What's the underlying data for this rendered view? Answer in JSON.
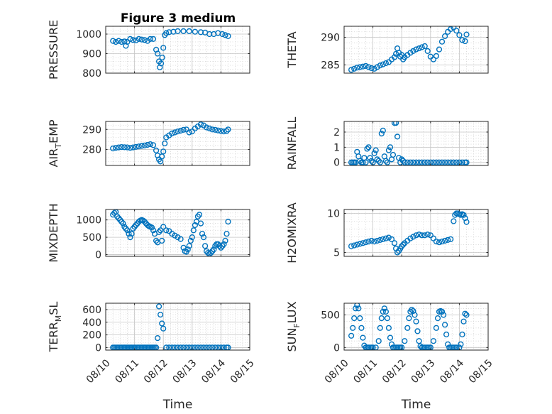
{
  "figure": {
    "title": "Figure 3 medium",
    "marker_color": "#0072BD"
  },
  "chart_data": [
    {
      "type": "scatter",
      "title": "Figure 3 medium",
      "ylabel": "PRESSURE",
      "xlabel": "",
      "xlim": [
        0,
        5
      ],
      "ylim": [
        800,
        1040
      ],
      "yticks": [
        800,
        900,
        1000
      ],
      "xticks": [
        0,
        1,
        2,
        3,
        4,
        5
      ],
      "xtick_labels": [
        "08/10",
        "08/11",
        "08/12",
        "08/13",
        "08/14",
        "08/15"
      ],
      "x_unit": "days since 08/10 00:00",
      "grid": true,
      "points": {
        "x": [
          0.25,
          0.35,
          0.45,
          0.55,
          0.65,
          0.7,
          0.75,
          0.85,
          0.95,
          1.05,
          1.15,
          1.25,
          1.35,
          1.45,
          1.55,
          1.65,
          1.75,
          1.8,
          1.85,
          1.88,
          1.92,
          1.96,
          2.0,
          2.05,
          2.1,
          2.2,
          2.35,
          2.5,
          2.7,
          2.9,
          3.1,
          3.3,
          3.45,
          3.6,
          3.75,
          3.9,
          4.05,
          4.15,
          4.25
        ],
        "y": [
          965,
          960,
          965,
          960,
          962,
          940,
          960,
          975,
          970,
          968,
          975,
          972,
          970,
          965,
          975,
          975,
          920,
          900,
          860,
          830,
          850,
          880,
          930,
          995,
          1005,
          1010,
          1012,
          1015,
          1015,
          1015,
          1012,
          1010,
          1008,
          1000,
          1000,
          1005,
          1000,
          995,
          990
        ]
      }
    },
    {
      "type": "scatter",
      "ylabel": "THETA",
      "xlabel": "",
      "xlim": [
        0,
        5
      ],
      "ylim": [
        283.5,
        292
      ],
      "yticks": [
        285,
        290
      ],
      "xticks": [
        0,
        1,
        2,
        3,
        4,
        5
      ],
      "xtick_labels": [
        "08/10",
        "08/11",
        "08/12",
        "08/13",
        "08/14",
        "08/15"
      ],
      "x_unit": "days since 08/10 00:00",
      "grid": true,
      "points": {
        "x": [
          0.25,
          0.35,
          0.45,
          0.55,
          0.65,
          0.75,
          0.85,
          0.95,
          1.05,
          1.15,
          1.25,
          1.35,
          1.45,
          1.55,
          1.65,
          1.75,
          1.8,
          1.85,
          1.9,
          1.95,
          2.0,
          2.05,
          2.1,
          2.2,
          2.3,
          2.4,
          2.5,
          2.6,
          2.7,
          2.8,
          2.9,
          3.0,
          3.1,
          3.2,
          3.3,
          3.4,
          3.5,
          3.6,
          3.7,
          3.8,
          3.9,
          4.0,
          4.1,
          4.2,
          4.25
        ],
        "y": [
          284.1,
          284.3,
          284.5,
          284.6,
          284.7,
          284.8,
          284.6,
          284.4,
          284.3,
          284.6,
          284.9,
          285.1,
          285.3,
          285.5,
          286.0,
          286.4,
          287.0,
          288.0,
          287.2,
          286.5,
          286.8,
          286.0,
          286.4,
          286.8,
          287.2,
          287.5,
          287.8,
          288.0,
          288.2,
          288.4,
          287.5,
          286.5,
          286.0,
          286.6,
          287.8,
          289.2,
          290.2,
          291.0,
          291.5,
          291.8,
          291.2,
          290.4,
          289.5,
          289.3,
          290.5
        ]
      }
    },
    {
      "type": "scatter",
      "ylabel": "AIR_TEMP",
      "ylabel_parts": [
        "AIR",
        "T",
        "EMP"
      ],
      "xlabel": "",
      "xlim": [
        0,
        5
      ],
      "ylim": [
        272,
        294
      ],
      "yticks": [
        280,
        290
      ],
      "xticks": [
        0,
        1,
        2,
        3,
        4,
        5
      ],
      "xtick_labels": [
        "08/10",
        "08/11",
        "08/12",
        "08/13",
        "08/14",
        "08/15"
      ],
      "x_unit": "days since 08/10 00:00",
      "grid": true,
      "points": {
        "x": [
          0.25,
          0.35,
          0.45,
          0.55,
          0.65,
          0.75,
          0.85,
          0.95,
          1.05,
          1.15,
          1.25,
          1.35,
          1.45,
          1.55,
          1.65,
          1.75,
          1.8,
          1.85,
          1.9,
          1.95,
          2.0,
          2.05,
          2.1,
          2.2,
          2.3,
          2.4,
          2.5,
          2.6,
          2.7,
          2.8,
          2.9,
          3.0,
          3.1,
          3.2,
          3.3,
          3.4,
          3.5,
          3.6,
          3.7,
          3.8,
          3.9,
          4.0,
          4.1,
          4.2,
          4.25
        ],
        "y": [
          280.5,
          280.8,
          281.0,
          281.2,
          281.1,
          281.0,
          280.8,
          281.0,
          281.3,
          281.5,
          281.8,
          282.0,
          282.3,
          282.6,
          282.2,
          279.5,
          277.0,
          275.0,
          274.0,
          276.5,
          279.0,
          283.0,
          286.0,
          287.0,
          288.0,
          288.5,
          289.0,
          289.4,
          289.8,
          290.0,
          288.5,
          289.0,
          290.5,
          291.5,
          292.5,
          292.0,
          291.0,
          290.5,
          290.0,
          289.8,
          289.5,
          289.2,
          289.0,
          289.2,
          290.0
        ]
      }
    },
    {
      "type": "scatter",
      "ylabel": "RAINFALL",
      "xlabel": "",
      "xlim": [
        0,
        5
      ],
      "ylim": [
        -0.2,
        2.7
      ],
      "yticks": [
        0,
        1,
        2
      ],
      "xticks": [
        0,
        1,
        2,
        3,
        4,
        5
      ],
      "xtick_labels": [
        "08/10",
        "08/11",
        "08/12",
        "08/13",
        "08/14",
        "08/15"
      ],
      "x_unit": "days since 08/10 00:00",
      "grid": true,
      "points": {
        "x": [
          0.25,
          0.3,
          0.35,
          0.4,
          0.45,
          0.5,
          0.55,
          0.6,
          0.65,
          0.7,
          0.75,
          0.8,
          0.85,
          0.9,
          0.95,
          1.0,
          1.05,
          1.1,
          1.15,
          1.2,
          1.25,
          1.3,
          1.35,
          1.4,
          1.45,
          1.5,
          1.55,
          1.6,
          1.65,
          1.7,
          1.75,
          1.8,
          1.85,
          1.9,
          1.95,
          2.0,
          2.05,
          2.1,
          2.2,
          2.3,
          2.4,
          2.5,
          2.6,
          2.7,
          2.8,
          2.9,
          3.0,
          3.1,
          3.2,
          3.3,
          3.4,
          3.5,
          3.6,
          3.7,
          3.8,
          3.9,
          4.0,
          4.1,
          4.2,
          4.25
        ],
        "y": [
          0,
          0,
          0,
          0,
          0.7,
          0.4,
          0.1,
          0,
          0,
          0.3,
          0,
          0.9,
          1.0,
          0.3,
          0.1,
          0,
          0.6,
          0.8,
          0.2,
          0.1,
          0,
          1.9,
          2.1,
          0.4,
          0.1,
          0,
          0.8,
          1.0,
          0.2,
          0.5,
          2.6,
          2.6,
          1.7,
          0.3,
          0,
          0.2,
          0.1,
          0,
          0,
          0,
          0,
          0,
          0,
          0,
          0,
          0,
          0,
          0,
          0,
          0,
          0,
          0,
          0,
          0,
          0,
          0,
          0,
          0,
          0,
          0
        ]
      }
    },
    {
      "type": "scatter",
      "ylabel": "MIXDEPTH",
      "xlabel": "",
      "xlim": [
        0,
        5
      ],
      "ylim": [
        -50,
        1300
      ],
      "yticks": [
        0,
        500,
        1000
      ],
      "xticks": [
        0,
        1,
        2,
        3,
        4,
        5
      ],
      "xtick_labels": [
        "08/10",
        "08/11",
        "08/12",
        "08/13",
        "08/14",
        "08/15"
      ],
      "x_unit": "days since 08/10 00:00",
      "grid": true,
      "points": {
        "x": [
          0.25,
          0.3,
          0.35,
          0.4,
          0.45,
          0.5,
          0.55,
          0.6,
          0.65,
          0.7,
          0.75,
          0.8,
          0.85,
          0.9,
          0.95,
          1.0,
          1.05,
          1.1,
          1.15,
          1.2,
          1.25,
          1.3,
          1.35,
          1.4,
          1.45,
          1.5,
          1.55,
          1.6,
          1.65,
          1.7,
          1.75,
          1.8,
          1.85,
          1.9,
          1.95,
          2.0,
          2.1,
          2.2,
          2.3,
          2.4,
          2.5,
          2.6,
          2.7,
          2.75,
          2.8,
          2.85,
          2.9,
          2.95,
          3.0,
          3.05,
          3.1,
          3.15,
          3.2,
          3.25,
          3.3,
          3.35,
          3.4,
          3.45,
          3.5,
          3.55,
          3.6,
          3.65,
          3.7,
          3.75,
          3.8,
          3.85,
          3.9,
          3.95,
          4.0,
          4.05,
          4.1,
          4.15,
          4.2,
          4.25
        ],
        "y": [
          1150,
          1200,
          1230,
          1100,
          1050,
          1000,
          950,
          900,
          800,
          750,
          700,
          600,
          500,
          600,
          750,
          800,
          850,
          900,
          950,
          980,
          1000,
          980,
          950,
          900,
          850,
          820,
          800,
          780,
          700,
          600,
          400,
          350,
          650,
          700,
          400,
          800,
          700,
          680,
          600,
          550,
          500,
          450,
          200,
          100,
          80,
          150,
          250,
          400,
          500,
          700,
          850,
          950,
          1100,
          1150,
          900,
          600,
          500,
          250,
          100,
          50,
          20,
          50,
          100,
          150,
          250,
          300,
          300,
          250,
          200,
          250,
          300,
          400,
          600,
          950
        ]
      }
    },
    {
      "type": "scatter",
      "ylabel": "H2OMIXRA",
      "xlabel": "",
      "xlim": [
        0,
        5
      ],
      "ylim": [
        4.5,
        10.5
      ],
      "yticks": [
        5,
        10
      ],
      "xticks": [
        0,
        1,
        2,
        3,
        4,
        5
      ],
      "xtick_labels": [
        "08/10",
        "08/11",
        "08/12",
        "08/13",
        "08/14",
        "08/15"
      ],
      "x_unit": "days since 08/10 00:00",
      "grid": true,
      "points": {
        "x": [
          0.25,
          0.35,
          0.45,
          0.55,
          0.65,
          0.75,
          0.85,
          0.95,
          1.05,
          1.15,
          1.25,
          1.35,
          1.45,
          1.55,
          1.65,
          1.75,
          1.8,
          1.85,
          1.9,
          1.95,
          2.0,
          2.05,
          2.1,
          2.2,
          2.3,
          2.4,
          2.5,
          2.6,
          2.7,
          2.8,
          2.9,
          3.0,
          3.1,
          3.2,
          3.3,
          3.4,
          3.5,
          3.6,
          3.7,
          3.8,
          3.85,
          3.9,
          3.95,
          4.0,
          4.05,
          4.1,
          4.15,
          4.2,
          4.25
        ],
        "y": [
          5.8,
          5.9,
          6.0,
          6.1,
          6.2,
          6.3,
          6.4,
          6.5,
          6.4,
          6.5,
          6.6,
          6.7,
          6.8,
          6.9,
          6.7,
          6.2,
          5.5,
          5.0,
          5.2,
          5.5,
          5.8,
          6.0,
          6.2,
          6.5,
          6.8,
          7.0,
          7.2,
          7.3,
          7.2,
          7.2,
          7.3,
          7.2,
          6.8,
          6.4,
          6.3,
          6.4,
          6.5,
          6.6,
          6.7,
          9.0,
          9.8,
          10.0,
          10.0,
          9.9,
          9.8,
          9.9,
          9.8,
          9.4,
          8.9
        ]
      }
    },
    {
      "type": "scatter",
      "ylabel": "TERR_MSL",
      "ylabel_parts": [
        "TERR",
        "M",
        "SL"
      ],
      "xlabel": "Time",
      "xlim": [
        0,
        5
      ],
      "ylim": [
        -40,
        700
      ],
      "yticks": [
        0,
        200,
        400,
        600
      ],
      "xticks": [
        0,
        1,
        2,
        3,
        4,
        5
      ],
      "xtick_labels": [
        "08/10",
        "08/11",
        "08/12",
        "08/13",
        "08/14",
        "08/15"
      ],
      "x_unit": "days since 08/10 00:00",
      "grid": true,
      "points": {
        "x": [
          0.25,
          0.3,
          0.35,
          0.4,
          0.45,
          0.5,
          0.55,
          0.6,
          0.65,
          0.7,
          0.75,
          0.8,
          0.85,
          0.9,
          0.95,
          1.0,
          1.05,
          1.1,
          1.15,
          1.2,
          1.25,
          1.3,
          1.35,
          1.4,
          1.45,
          1.5,
          1.55,
          1.6,
          1.65,
          1.7,
          1.75,
          1.8,
          1.85,
          1.9,
          1.95,
          2.0,
          2.1,
          2.2,
          2.3,
          2.4,
          2.5,
          2.6,
          2.7,
          2.8,
          2.9,
          3.0,
          3.1,
          3.2,
          3.3,
          3.4,
          3.5,
          3.6,
          3.7,
          3.8,
          3.9,
          4.0,
          4.1,
          4.2,
          4.25
        ],
        "y": [
          0,
          0,
          0,
          0,
          0,
          0,
          0,
          0,
          0,
          0,
          0,
          0,
          0,
          0,
          0,
          0,
          0,
          0,
          0,
          0,
          0,
          0,
          0,
          0,
          0,
          0,
          0,
          0,
          0,
          0,
          0,
          150,
          650,
          520,
          380,
          300,
          0,
          0,
          0,
          0,
          0,
          0,
          0,
          0,
          0,
          0,
          0,
          0,
          0,
          0,
          0,
          0,
          0,
          0,
          0,
          0,
          0,
          0,
          0
        ]
      }
    },
    {
      "type": "scatter",
      "ylabel": "SUN_FLUX",
      "ylabel_parts": [
        "SUN",
        "F",
        "LUX"
      ],
      "xlabel": "Time",
      "xlim": [
        0,
        5
      ],
      "ylim": [
        -40,
        680
      ],
      "yticks": [
        0,
        500
      ],
      "xticks": [
        0,
        1,
        2,
        3,
        4,
        5
      ],
      "xtick_labels": [
        "08/10",
        "08/11",
        "08/12",
        "08/13",
        "08/14",
        "08/15"
      ],
      "x_unit": "days since 08/10 00:00",
      "grid": true,
      "points": {
        "x": [
          0.25,
          0.3,
          0.35,
          0.4,
          0.45,
          0.5,
          0.55,
          0.6,
          0.65,
          0.7,
          0.75,
          0.8,
          0.85,
          0.9,
          0.95,
          1.0,
          1.1,
          1.2,
          1.25,
          1.3,
          1.35,
          1.4,
          1.45,
          1.5,
          1.55,
          1.6,
          1.65,
          1.7,
          1.75,
          1.8,
          1.85,
          1.9,
          1.95,
          2.0,
          2.1,
          2.2,
          2.25,
          2.3,
          2.35,
          2.4,
          2.45,
          2.5,
          2.55,
          2.6,
          2.65,
          2.7,
          2.75,
          2.8,
          2.85,
          2.9,
          2.95,
          3.0,
          3.1,
          3.2,
          3.25,
          3.3,
          3.35,
          3.4,
          3.45,
          3.5,
          3.55,
          3.6,
          3.65,
          3.7,
          3.75,
          3.8,
          3.85,
          3.9,
          4.0,
          4.05,
          4.1,
          4.15,
          4.2,
          4.25
        ],
        "y": [
          180,
          300,
          450,
          600,
          650,
          600,
          450,
          300,
          150,
          30,
          0,
          0,
          0,
          0,
          0,
          0,
          0,
          100,
          300,
          450,
          550,
          600,
          550,
          450,
          300,
          150,
          50,
          0,
          0,
          0,
          0,
          0,
          0,
          0,
          100,
          300,
          450,
          550,
          580,
          560,
          500,
          400,
          250,
          100,
          20,
          0,
          0,
          0,
          0,
          0,
          0,
          0,
          100,
          300,
          450,
          550,
          560,
          550,
          500,
          350,
          200,
          50,
          0,
          0,
          0,
          0,
          0,
          0,
          0,
          50,
          200,
          400,
          520,
          500
        ]
      }
    }
  ]
}
